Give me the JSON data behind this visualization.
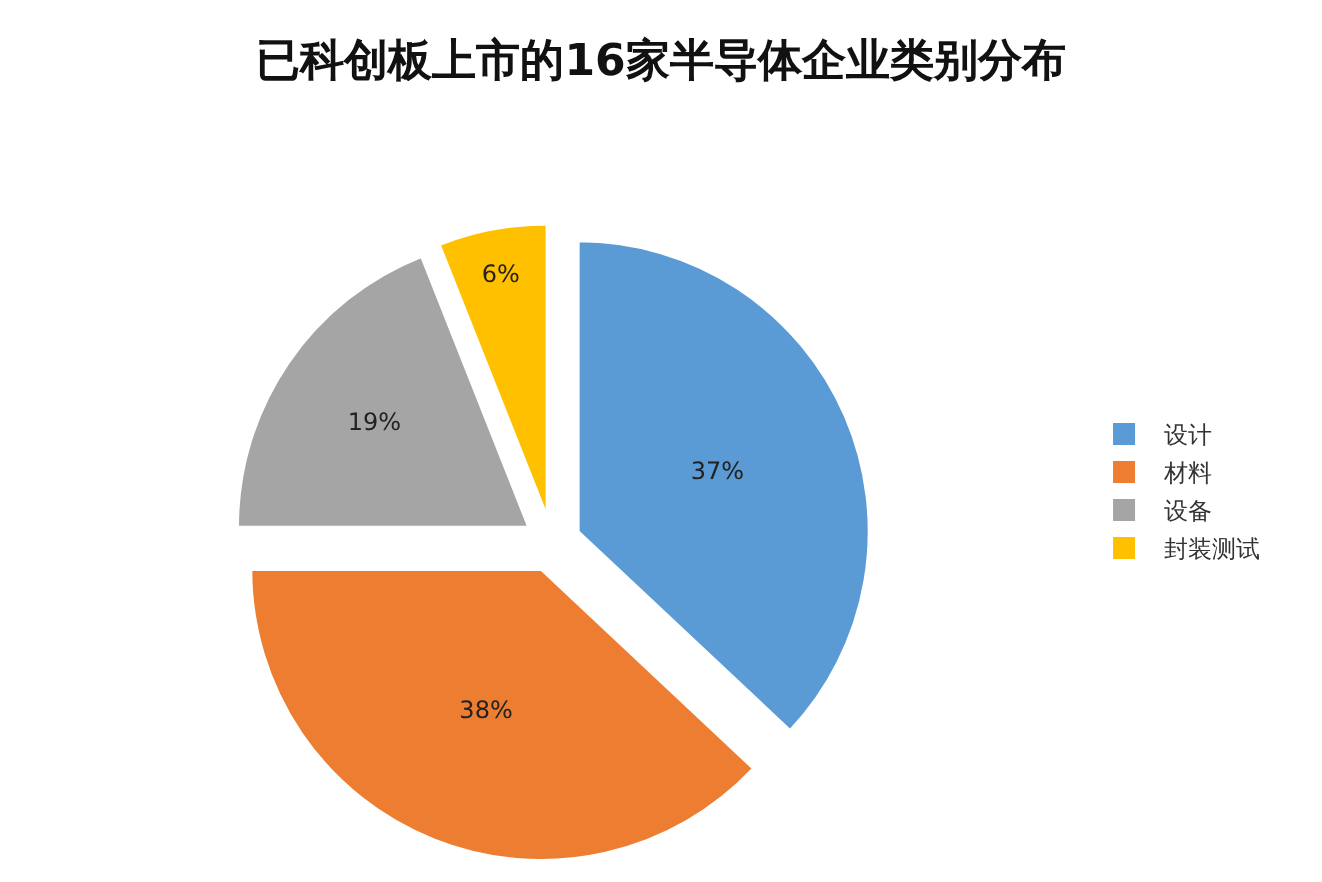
{
  "chart_data": {
    "type": "pie",
    "title": "已科创板上市的16家半导体企业类别分布",
    "categories": [
      "设计",
      "材料",
      "设备",
      "封装测试"
    ],
    "values": [
      37,
      38,
      19,
      6
    ],
    "colors": [
      "#5b9bd5",
      "#ed7d31",
      "#a5a5a5",
      "#ffc000"
    ],
    "value_labels": [
      "37%",
      "38%",
      "19%",
      "6%"
    ],
    "legend": "right"
  }
}
